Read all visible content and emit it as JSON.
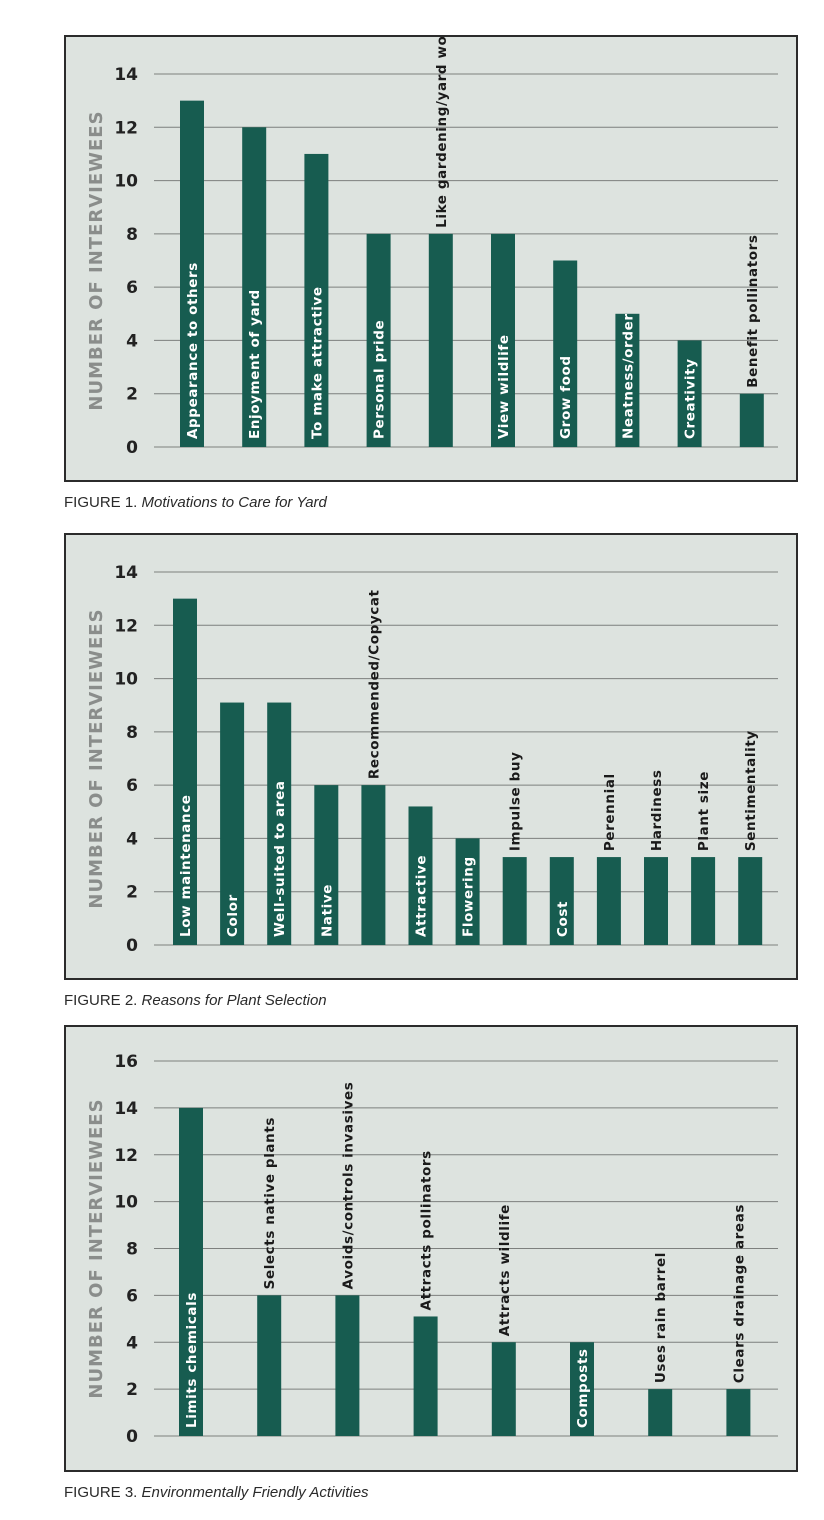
{
  "colors": {
    "bar": "#175c50",
    "grid": "#7d807e",
    "axis_text": "#222222",
    "ylabel_text": "#8a8d8b",
    "bar_label_on_bar": "#ffffff",
    "bar_label_above": "#1a1a1a"
  },
  "chart_data": [
    {
      "type": "bar",
      "ylabel": "NUMBER OF INTERVIEWEES",
      "ylim": [
        0,
        14
      ],
      "yticks": [
        0,
        2,
        4,
        6,
        8,
        10,
        12,
        14
      ],
      "grid": true,
      "categories": [
        "Appearance to others",
        "Enjoyment of yard",
        "To make attractive",
        "Personal pride",
        "Like gardening/yard work",
        "View wildlife",
        "Grow food",
        "Neatness/order",
        "Creativity",
        "Benefit pollinators"
      ],
      "values": [
        13,
        12,
        11,
        8,
        8,
        8,
        7,
        5,
        4,
        2
      ],
      "caption": {
        "label": "FIGURE 1.",
        "title": "Motivations to Care for Yard"
      }
    },
    {
      "type": "bar",
      "ylabel": "NUMBER OF INTERVIEWEES",
      "ylim": [
        0,
        14
      ],
      "yticks": [
        0,
        2,
        4,
        6,
        8,
        10,
        12,
        14
      ],
      "grid": true,
      "categories": [
        "Low maintenance",
        "Color",
        "Well-suited to area",
        "Native",
        "Recommended/Copycat",
        "Attractive",
        "Flowering",
        "Impulse buy",
        "Cost",
        "Perennial",
        "Hardiness",
        "Plant size",
        "Sentimentality"
      ],
      "values": [
        13,
        9.1,
        9.1,
        6,
        6,
        5.2,
        4,
        3.3,
        3.3,
        3.3,
        3.3,
        3.3,
        3.3
      ],
      "caption": {
        "label": "FIGURE 2.",
        "title": "Reasons for Plant Selection"
      }
    },
    {
      "type": "bar",
      "ylabel": "NUMBER OF INTERVIEWEES",
      "ylim": [
        0,
        16
      ],
      "yticks": [
        0,
        2,
        4,
        6,
        8,
        10,
        12,
        14,
        16
      ],
      "grid": true,
      "categories": [
        "Limits chemicals",
        "Selects native plants",
        "Avoids/controls invasives",
        "Attracts pollinators",
        "Attracts wildlife",
        "Composts",
        "Uses rain barrel",
        "Clears drainage areas"
      ],
      "values": [
        14,
        6,
        6,
        5.1,
        4,
        4,
        2,
        2
      ],
      "caption": {
        "label": "FIGURE 3.",
        "title": "Environmentally Friendly Activities"
      }
    }
  ]
}
